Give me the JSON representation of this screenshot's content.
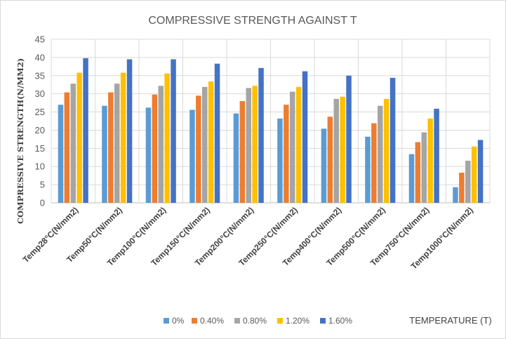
{
  "chart_data": {
    "type": "bar",
    "title": "COMPRESSIVE STRENGTH AGAINST T",
    "xlabel": "TEMPERATURE (T)",
    "ylabel": "COMPRESSIVE STRENGTH(N/MM2)",
    "ylim": [
      0,
      45
    ],
    "yticks": [
      0,
      5,
      10,
      15,
      20,
      25,
      30,
      35,
      40,
      45
    ],
    "grid": true,
    "legend_position": "bottom",
    "categories": [
      "Temp28°C(N/mm2)",
      "Temp50°C(N/mm2)",
      "Temp100°C(N/mm2)",
      "Temp150°C(N/mm2)",
      "Temp200°C(N/mm2)",
      "Temp250°C(N/mm2)",
      "Temp400°C(N/mm2)",
      "Temp500°C(N/mm2)",
      "Temp750°C(N/mm2)",
      "Temp1000°C(N/mm2)"
    ],
    "series": [
      {
        "name": "0%",
        "color": "#5b9bd5",
        "values": [
          27.0,
          26.7,
          26.2,
          25.6,
          24.6,
          23.2,
          20.4,
          18.2,
          13.4,
          4.3
        ]
      },
      {
        "name": "0.40%",
        "color": "#ed7d31",
        "values": [
          30.4,
          30.4,
          29.8,
          29.5,
          28.0,
          27.0,
          23.7,
          21.9,
          16.7,
          8.3
        ]
      },
      {
        "name": "0.80%",
        "color": "#a5a5a5",
        "values": [
          32.8,
          32.8,
          32.2,
          31.9,
          31.6,
          30.6,
          28.6,
          26.7,
          19.4,
          11.6
        ]
      },
      {
        "name": "1.20%",
        "color": "#ffc000",
        "values": [
          35.8,
          35.8,
          35.6,
          33.4,
          32.2,
          31.9,
          29.2,
          28.6,
          23.2,
          15.5
        ]
      },
      {
        "name": "1.60%",
        "color": "#4472c4",
        "values": [
          39.8,
          39.5,
          39.5,
          38.3,
          37.1,
          36.2,
          35.0,
          34.4,
          25.9,
          17.3
        ]
      }
    ]
  }
}
